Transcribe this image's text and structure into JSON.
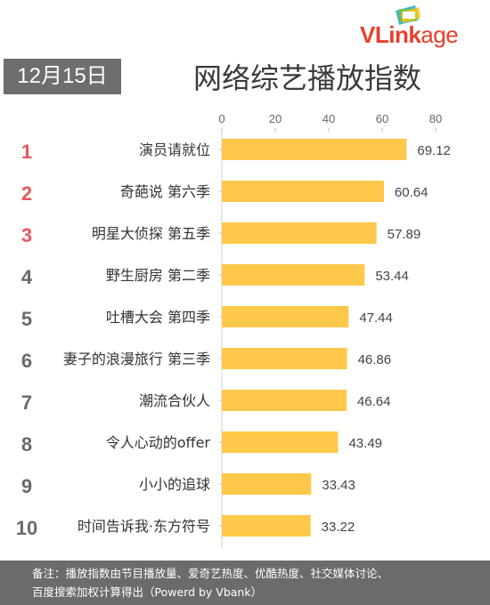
{
  "logo": {
    "brand_v": "V",
    "brand_link": "Link",
    "brand_age": "age"
  },
  "header": {
    "date": "12月15日",
    "title": "网络综艺播放指数"
  },
  "chart_data": {
    "type": "bar",
    "orientation": "horizontal",
    "ranks": [
      "1",
      "2",
      "3",
      "4",
      "5",
      "6",
      "7",
      "8",
      "9",
      "10"
    ],
    "categories": [
      "演员请就位",
      "奇葩说 第六季",
      "明星大侦探 第五季",
      "野生厨房 第二季",
      "吐槽大会 第四季",
      "妻子的浪漫旅行 第三季",
      "潮流合伙人",
      "令人心动的offer",
      "小小的追球",
      "时间告诉我·东方符号"
    ],
    "values": [
      69.12,
      60.64,
      57.89,
      53.44,
      47.44,
      46.86,
      46.64,
      43.49,
      33.43,
      33.22
    ],
    "value_labels": [
      "69.12",
      "60.64",
      "57.89",
      "53.44",
      "47.44",
      "46.86",
      "46.64",
      "43.49",
      "33.43",
      "33.22"
    ],
    "xlim": [
      0,
      80
    ],
    "xticks": [
      "0",
      "20",
      "40",
      "60",
      "80"
    ],
    "axis_position": "top",
    "grid": false,
    "bar_color": "#FFC84A",
    "top_rank_color": "#E8595F",
    "rank_color": "#6A6A6A"
  },
  "footer": {
    "line1": "备注：播放指数由节目播放量、爱奇艺热度、优酷热度、社交媒体讨论、",
    "line2": "百度搜索加权计算得出（Powerd by Vbank）"
  }
}
